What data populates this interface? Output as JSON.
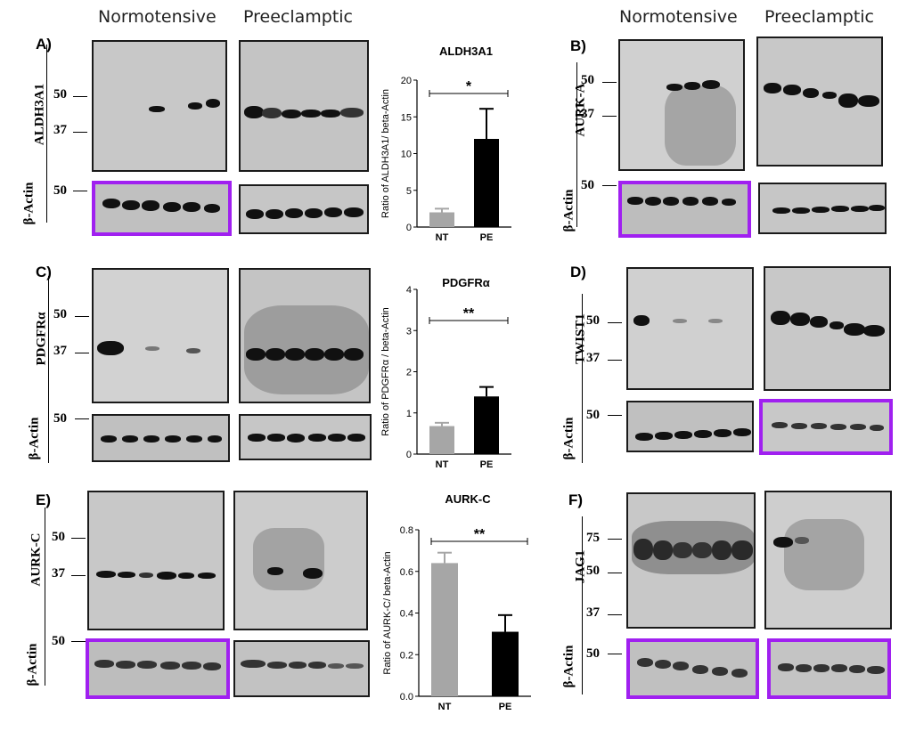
{
  "headers": {
    "normotensive": "Normotensive",
    "preeclamptic": "Preeclamptic"
  },
  "panels": [
    {
      "letter": "A)",
      "protein": "ALDH3A1",
      "loading": "β-Actin",
      "markers": [
        "50",
        "37"
      ],
      "actin_marker": "50"
    },
    {
      "letter": "B)",
      "protein": "AURK-A",
      "loading": "β-Actin",
      "markers": [
        "50",
        "37"
      ],
      "actin_marker": "50"
    },
    {
      "letter": "C)",
      "protein": "PDGFRα",
      "loading": "β-Actin",
      "markers": [
        "50",
        "37"
      ],
      "actin_marker": "50"
    },
    {
      "letter": "D)",
      "protein": "TWIST1",
      "loading": "β-Actin",
      "markers": [
        "50",
        "37"
      ],
      "actin_marker": "50"
    },
    {
      "letter": "E)",
      "protein": "AURK-C",
      "loading": "β-Actin",
      "markers": [
        "50",
        "37"
      ],
      "actin_marker": "50"
    },
    {
      "letter": "F)",
      "protein": "JAG1",
      "loading": "β-Actin",
      "markers": [
        "75",
        "50",
        "37"
      ],
      "actin_marker": "50"
    }
  ],
  "chart_data": [
    {
      "type": "bar",
      "title": "ALDH3A1",
      "ylabel": "Ratio of ALDH3A1/ beta-Actin",
      "categories": [
        "NT",
        "PE"
      ],
      "values": [
        2.0,
        12.0
      ],
      "errors": [
        0.5,
        4.1
      ],
      "ylim": [
        0,
        20
      ],
      "yticks": [
        "0",
        "5",
        "10",
        "15",
        "20"
      ],
      "significance": "*",
      "colors": [
        "#a6a6a6",
        "#000000"
      ]
    },
    {
      "type": "bar",
      "title": "PDGFRα",
      "ylabel": "Ratio of PDGFRα / beta-Actin",
      "categories": [
        "NT",
        "PE"
      ],
      "values": [
        0.68,
        1.4
      ],
      "errors": [
        0.08,
        0.23
      ],
      "ylim": [
        0,
        4
      ],
      "yticks": [
        "0",
        "1",
        "2",
        "3",
        "4"
      ],
      "significance": "**",
      "colors": [
        "#a6a6a6",
        "#000000"
      ]
    },
    {
      "type": "bar",
      "title": "AURK-C",
      "ylabel": "Ratio of AURK-C/ beta-Actin",
      "categories": [
        "NT",
        "PE"
      ],
      "values": [
        0.64,
        0.31
      ],
      "errors": [
        0.05,
        0.08
      ],
      "ylim": [
        0,
        0.8
      ],
      "yticks": [
        "0.0",
        "0.2",
        "0.4",
        "0.6",
        "0.8"
      ],
      "significance": "**",
      "colors": [
        "#a6a6a6",
        "#000000"
      ]
    }
  ]
}
